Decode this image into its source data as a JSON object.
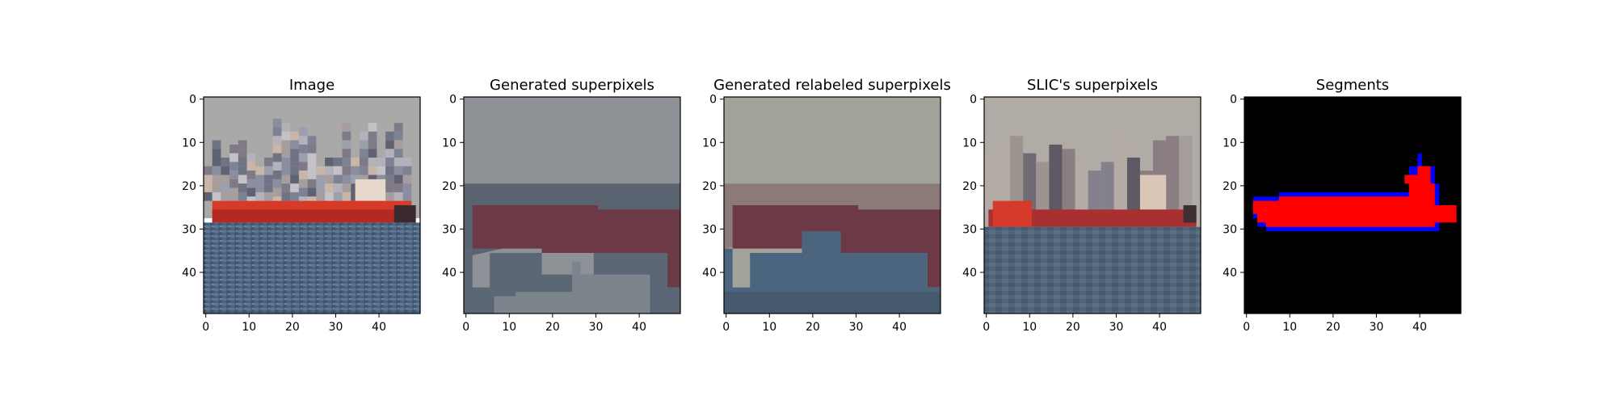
{
  "chart_data": [
    {
      "type": "heatmap",
      "title": "Image",
      "rendering": "photograph",
      "xlim": [
        0,
        49
      ],
      "ylim": [
        49,
        0
      ],
      "xticks": [
        0,
        10,
        20,
        30,
        40
      ],
      "yticks": [
        0,
        10,
        20,
        30,
        40
      ],
      "regions": [
        {
          "label": "sky",
          "rows": [
            0,
            12
          ],
          "color": "#a9a9a7"
        },
        {
          "label": "city skyline",
          "rows": [
            8,
            23
          ],
          "color": "#8f8e96"
        },
        {
          "label": "ship hull",
          "rows": [
            23,
            28
          ],
          "color": "#d83a2a"
        },
        {
          "label": "sea",
          "rows": [
            28,
            49
          ],
          "color": "#4d6480"
        }
      ]
    },
    {
      "type": "heatmap",
      "title": "Generated superpixels",
      "xlim": [
        0,
        49
      ],
      "ylim": [
        49,
        0
      ],
      "xticks": [
        0,
        10,
        20,
        30,
        40
      ],
      "yticks": [
        0,
        10,
        20,
        30,
        40
      ],
      "regions": [
        {
          "label": "sky",
          "color": "#8e9297"
        },
        {
          "label": "band",
          "color": "#5a6470"
        },
        {
          "label": "hull",
          "color": "#6b3a46"
        },
        {
          "label": "water upper",
          "color": "#5b6775"
        },
        {
          "label": "water lower",
          "color": "#7c848c"
        },
        {
          "label": "bottom",
          "color": "#8f9398"
        }
      ]
    },
    {
      "type": "heatmap",
      "title": "Generated relabeled superpixels",
      "xlim": [
        0,
        49
      ],
      "ylim": [
        49,
        0
      ],
      "xticks": [
        0,
        10,
        20,
        30,
        40
      ],
      "yticks": [
        0,
        10,
        20,
        30,
        40
      ],
      "regions": [
        {
          "label": "sky",
          "color": "#a3a29b"
        },
        {
          "label": "band",
          "color": "#8c7a78"
        },
        {
          "label": "hull",
          "color": "#6b3a46"
        },
        {
          "label": "water",
          "color": "#4c657e"
        },
        {
          "label": "water bottom",
          "color": "#46596c"
        }
      ]
    },
    {
      "type": "heatmap",
      "title": "SLIC's superpixels",
      "xlim": [
        0,
        49
      ],
      "ylim": [
        49,
        0
      ],
      "xticks": [
        0,
        10,
        20,
        30,
        40
      ],
      "yticks": [
        0,
        10,
        20,
        30,
        40
      ],
      "regions": [
        {
          "label": "sky",
          "color": "#b0aca5"
        },
        {
          "label": "city",
          "color": "#8b7e82"
        },
        {
          "label": "hull",
          "color": "#a83030"
        },
        {
          "label": "hull bow",
          "color": "#d63a2a"
        },
        {
          "label": "sea",
          "color": "#4f6378"
        }
      ]
    },
    {
      "type": "heatmap",
      "title": "Segments",
      "xlim": [
        0,
        49
      ],
      "ylim": [
        49,
        0
      ],
      "xticks": [
        0,
        10,
        20,
        30,
        40
      ],
      "yticks": [
        0,
        10,
        20,
        30,
        40
      ],
      "regions": [
        {
          "label": "background",
          "color": "#000000"
        },
        {
          "label": "ship",
          "color": "#ff0000"
        },
        {
          "label": "boundary",
          "color": "#0000ff"
        }
      ]
    }
  ]
}
